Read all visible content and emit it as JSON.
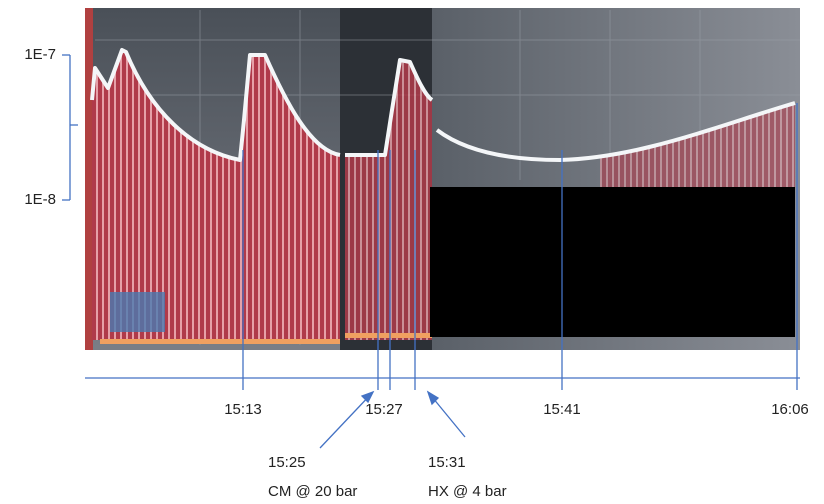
{
  "y_axis": {
    "labels": [
      "1E-7",
      "1E-8"
    ]
  },
  "time_axis": {
    "labels": [
      "15:13",
      "15:27",
      "15:41",
      "16:06"
    ]
  },
  "annotations": [
    {
      "time": "15:25",
      "label": "CM @ 20 bar"
    },
    {
      "time": "15:31",
      "label": "HX @ 4 bar"
    }
  ]
}
